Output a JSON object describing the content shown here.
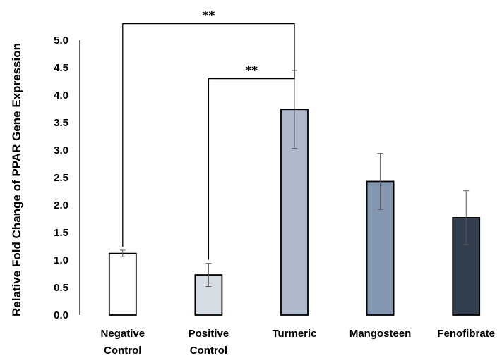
{
  "chart_data": {
    "type": "bar",
    "ylabel": "Relative Fold Change of PPAR Gene Expression",
    "xlabel": "",
    "ylim": [
      0,
      5.0
    ],
    "yticks": [
      0.0,
      0.5,
      1.0,
      1.5,
      2.0,
      2.5,
      3.0,
      3.5,
      4.0,
      4.5,
      5.0
    ],
    "ytick_labels": [
      "0.0",
      "0.5",
      "1.0",
      "1.5",
      "2.0",
      "2.5",
      "3.0",
      "3.5",
      "4.0",
      "4.5",
      "5.0"
    ],
    "categories": [
      [
        "Negative",
        "Control"
      ],
      [
        "Positive",
        "Control"
      ],
      [
        "Turmeric"
      ],
      [
        "Mangosteen"
      ],
      [
        "Fenofibrate"
      ]
    ],
    "values": [
      1.12,
      0.73,
      3.74,
      2.43,
      1.77
    ],
    "errors": [
      0.06,
      0.21,
      0.71,
      0.51,
      0.49
    ],
    "colors": [
      "#ffffff",
      "#d6dce4",
      "#adb9ca",
      "#8497b0",
      "#323f4f"
    ],
    "grid": false,
    "legend": "none",
    "significance": [
      {
        "from": 0,
        "to": 2,
        "label": "**",
        "level": 5.3
      },
      {
        "from": 1,
        "to": 2,
        "label": "**",
        "level": 4.3
      }
    ]
  }
}
